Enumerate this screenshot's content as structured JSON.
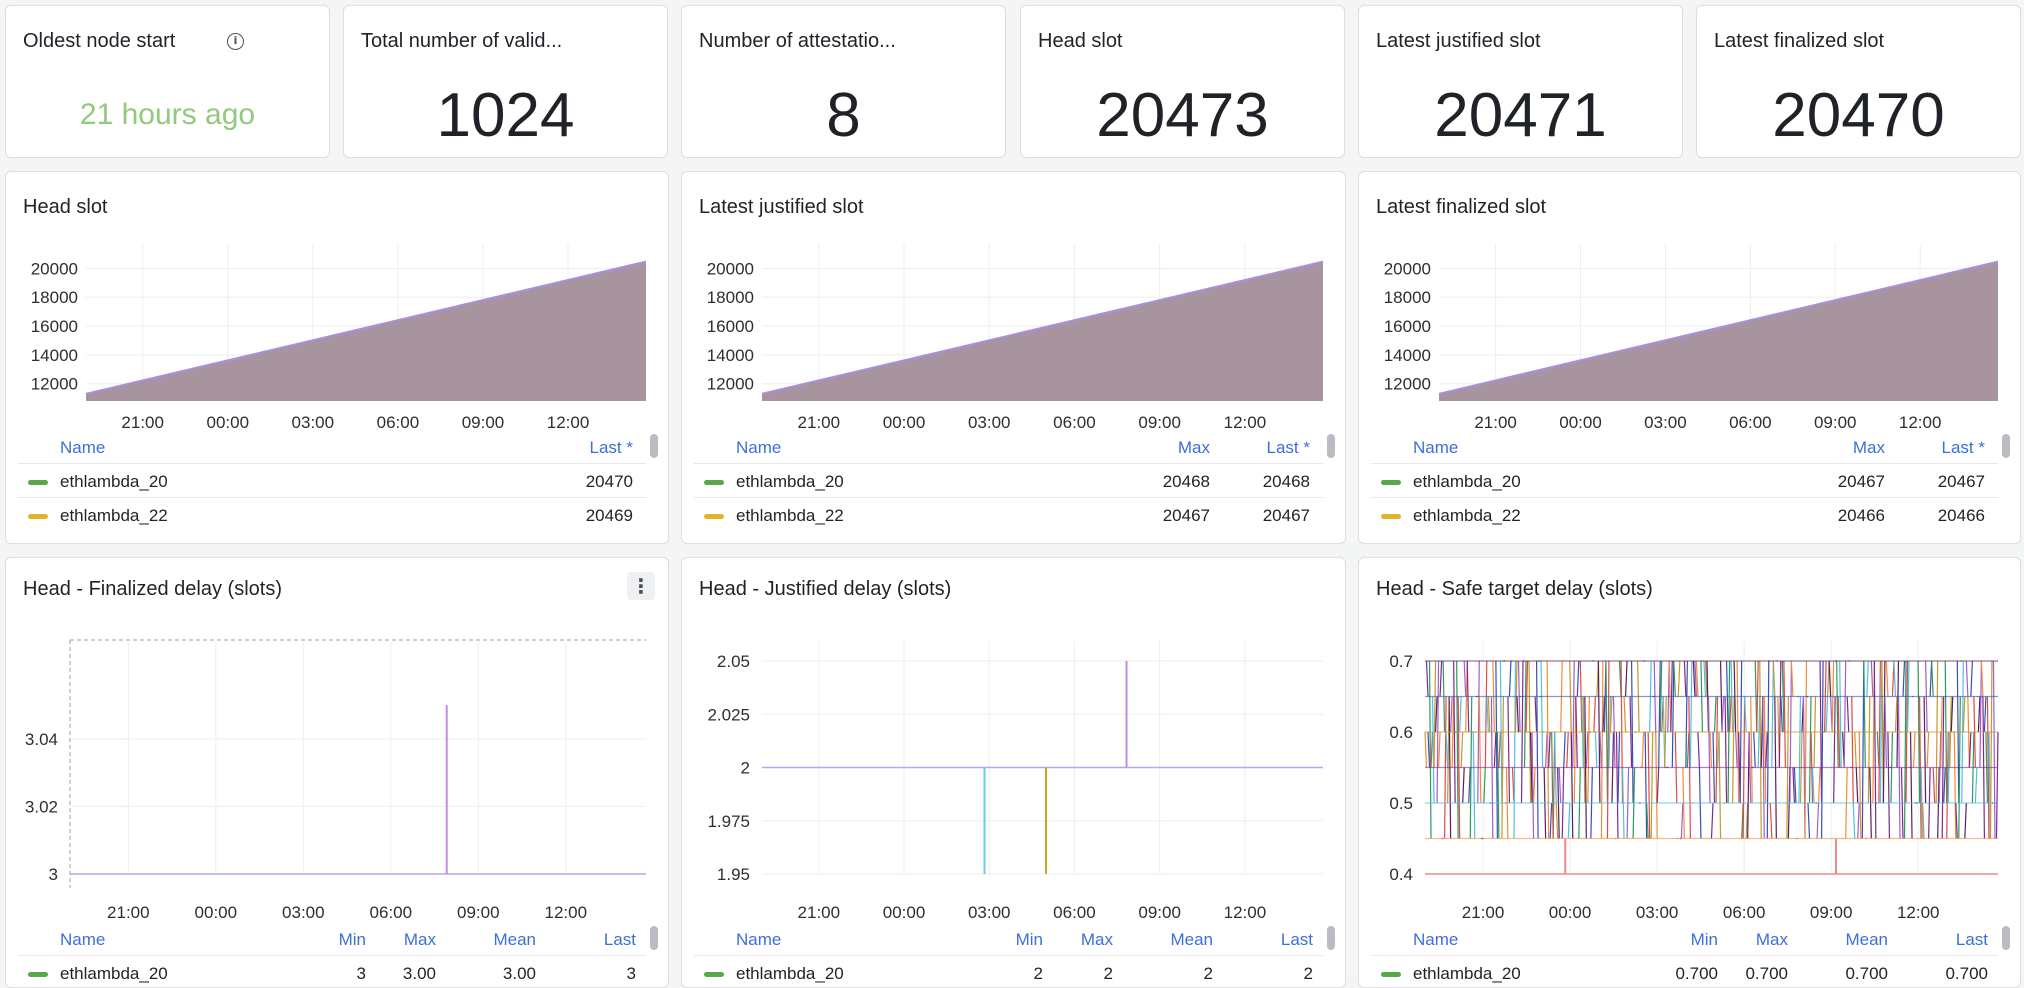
{
  "stats": [
    {
      "title": "Oldest node start",
      "value": "21 hours ago",
      "color": "#92c97c"
    },
    {
      "title": "Total number of valid...",
      "value": "1024"
    },
    {
      "title": "Number of attestatio...",
      "value": "8"
    },
    {
      "title": "Head slot",
      "value": "20473"
    },
    {
      "title": "Latest justified slot",
      "value": "20471"
    },
    {
      "title": "Latest finalized slot",
      "value": "20470"
    }
  ],
  "slot_panels": [
    {
      "title": "Head slot",
      "legend_headers": [
        "Name",
        "Last *"
      ],
      "rows": [
        {
          "name": "ethlambda_20",
          "cells": [
            "20470"
          ],
          "color": "#5aa64b"
        },
        {
          "name": "ethlambda_22",
          "cells": [
            "20469"
          ],
          "color": "#e0b426"
        }
      ]
    },
    {
      "title": "Latest justified slot",
      "legend_headers": [
        "Name",
        "Max",
        "Last *"
      ],
      "rows": [
        {
          "name": "ethlambda_20",
          "cells": [
            "20468",
            "20468"
          ],
          "color": "#5aa64b"
        },
        {
          "name": "ethlambda_22",
          "cells": [
            "20467",
            "20467"
          ],
          "color": "#e0b426"
        }
      ]
    },
    {
      "title": "Latest finalized slot",
      "legend_headers": [
        "Name",
        "Max",
        "Last *"
      ],
      "rows": [
        {
          "name": "ethlambda_20",
          "cells": [
            "20467",
            "20467"
          ],
          "color": "#5aa64b"
        },
        {
          "name": "ethlambda_22",
          "cells": [
            "20466",
            "20466"
          ],
          "color": "#e0b426"
        }
      ]
    }
  ],
  "delay_panels": [
    {
      "title": "Head - Finalized delay (slots)",
      "legend_headers": [
        "Name",
        "Min",
        "Max",
        "Mean",
        "Last"
      ],
      "rows": [
        {
          "name": "ethlambda_20",
          "cells": [
            "3",
            "3.00",
            "3.00",
            "3"
          ],
          "color": "#5aa64b"
        }
      ]
    },
    {
      "title": "Head - Justified delay (slots)",
      "legend_headers": [
        "Name",
        "Min",
        "Max",
        "Mean",
        "Last"
      ],
      "rows": [
        {
          "name": "ethlambda_20",
          "cells": [
            "2",
            "2",
            "2",
            "2"
          ],
          "color": "#5aa64b"
        }
      ]
    },
    {
      "title": "Head - Safe target delay (slots)",
      "legend_headers": [
        "Name",
        "Min",
        "Max",
        "Mean",
        "Last"
      ],
      "rows": [
        {
          "name": "ethlambda_20",
          "cells": [
            "0.700",
            "0.700",
            "0.700",
            "0.700"
          ],
          "color": "#5aa64b"
        }
      ]
    }
  ],
  "chart_data": [
    {
      "type": "area",
      "title": "Head slot",
      "x": [
        "19:00",
        "14:45"
      ],
      "x_ticks": [
        "21:00",
        "00:00",
        "03:00",
        "06:00",
        "09:00",
        "12:00"
      ],
      "y_ticks": [
        "12000",
        "14000",
        "16000",
        "18000",
        "20000"
      ],
      "ylim": [
        10800,
        21000
      ],
      "series": [
        {
          "values": [
            11300,
            20473
          ]
        }
      ],
      "fill_color": "#a8949e",
      "line_color": "#a98fe0"
    },
    {
      "type": "area",
      "title": "Latest justified slot",
      "x": [
        "19:00",
        "14:45"
      ],
      "x_ticks": [
        "21:00",
        "00:00",
        "03:00",
        "06:00",
        "09:00",
        "12:00"
      ],
      "y_ticks": [
        "12000",
        "14000",
        "16000",
        "18000",
        "20000"
      ],
      "ylim": [
        10800,
        21000
      ],
      "series": [
        {
          "values": [
            11300,
            20471
          ]
        }
      ],
      "fill_color": "#a8949e",
      "line_color": "#a98fe0"
    },
    {
      "type": "area",
      "title": "Latest finalized slot",
      "x": [
        "19:00",
        "14:45"
      ],
      "x_ticks": [
        "21:00",
        "00:00",
        "03:00",
        "06:00",
        "09:00",
        "12:00"
      ],
      "y_ticks": [
        "12000",
        "14000",
        "16000",
        "18000",
        "20000"
      ],
      "ylim": [
        10800,
        21000
      ],
      "series": [
        {
          "values": [
            11300,
            20470
          ]
        }
      ],
      "fill_color": "#a8949e",
      "line_color": "#a98fe0"
    },
    {
      "type": "line",
      "title": "Head - Finalized delay (slots)",
      "x_ticks": [
        "21:00",
        "00:00",
        "03:00",
        "06:00",
        "09:00",
        "12:00"
      ],
      "y_ticks": [
        "3",
        "3.02",
        "3.04"
      ],
      "ylim": [
        3,
        3.055
      ],
      "baseline": 3,
      "spikes": [
        {
          "x": "07:55",
          "y": 3.05,
          "color": "#c58ae3"
        }
      ]
    },
    {
      "type": "line",
      "title": "Head - Justified delay (slots)",
      "x_ticks": [
        "21:00",
        "00:00",
        "03:00",
        "06:00",
        "09:00",
        "12:00"
      ],
      "y_ticks": [
        "1.95",
        "1.975",
        "2",
        "2.025",
        "2.05"
      ],
      "ylim": [
        1.95,
        2.05
      ],
      "baseline": 2,
      "spikes": [
        {
          "x": "02:50",
          "y": 1.95,
          "color": "#5fd0e0"
        },
        {
          "x": "05:00",
          "y": 1.95,
          "color": "#c9a227"
        },
        {
          "x": "07:50",
          "y": 2.05,
          "color": "#c58ae3"
        }
      ]
    },
    {
      "type": "line",
      "title": "Head - Safe target delay (slots)",
      "x_ticks": [
        "21:00",
        "00:00",
        "03:00",
        "06:00",
        "09:00",
        "12:00"
      ],
      "y_ticks": [
        "0.4",
        "0.5",
        "0.6",
        "0.7"
      ],
      "ylim": [
        0.4,
        0.7
      ],
      "baseline": 0.4,
      "band": [
        0.45,
        0.7
      ],
      "spikes": [
        {
          "x": "23:50",
          "y": 0.45,
          "color": "#f08a8a"
        },
        {
          "x": "09:10",
          "y": 0.45,
          "color": "#f08a8a"
        }
      ],
      "series_colors": [
        "#f28c3a",
        "#7b2c8c",
        "#3a4fb5",
        "#2d9b5c",
        "#e04a4a",
        "#4fc3e0",
        "#c59a2a",
        "#5a1f5e",
        "#a05fd0"
      ]
    }
  ]
}
